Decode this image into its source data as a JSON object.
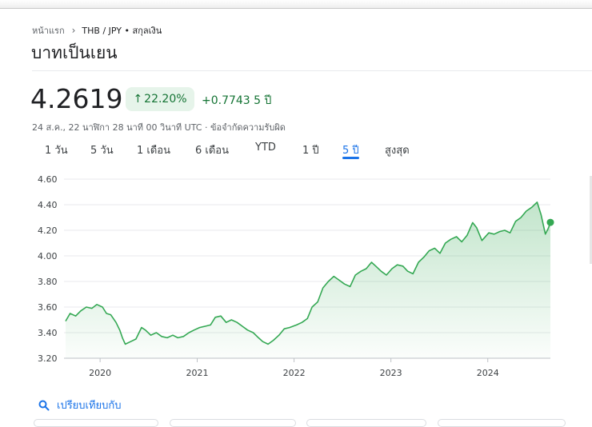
{
  "breadcrumb": {
    "home": "หน้าแรก",
    "current": "THB / JPY • สกุลเงิน"
  },
  "page_title": "บาทเป็นเยน",
  "quote": {
    "price": "4.2619",
    "change_percent": "22.20%",
    "change_abs": "+0.7743 5 ปี",
    "timestamp": "24 ส.ค., 22 นาฬิกา 28 นาที 00 วินาที UTC · ข้อจำกัดความรับผิด"
  },
  "tabs": [
    "1 วัน",
    "5 วัน",
    "1 เดือน",
    "6 เดือน",
    "YTD",
    "1 ปี",
    "5 ปี",
    "สูงสุด"
  ],
  "active_tab": "5 ปี",
  "compare": {
    "label": "เปรียบเทียบกับ"
  },
  "colors": {
    "positive": "#137333",
    "pill_bg": "#e6f4ea",
    "accent": "#1a73e8",
    "line": "#34a853"
  },
  "icons": {
    "change": "arrow-up-icon",
    "compare": "search-icon",
    "breadcrumb_sep": "chevron-right-icon"
  },
  "chart_data": {
    "type": "area",
    "xlabel": "",
    "ylabel": "",
    "ylim": [
      3.2,
      4.6
    ],
    "xlim": [
      "2019-08-24",
      "2024-08-24"
    ],
    "yticks": [
      "4.60",
      "4.40",
      "4.20",
      "4.00",
      "3.80",
      "3.60",
      "3.40",
      "3.20"
    ],
    "xticks": [
      {
        "label": "2020",
        "date": "2020-01-01"
      },
      {
        "label": "2021",
        "date": "2021-01-01"
      },
      {
        "label": "2022",
        "date": "2022-01-01"
      },
      {
        "label": "2023",
        "date": "2023-01-01"
      },
      {
        "label": "2024",
        "date": "2024-01-01"
      }
    ],
    "grid": true,
    "series": [
      {
        "points": [
          [
            "2019-08-24",
            3.49
          ],
          [
            "2019-09-10",
            3.55
          ],
          [
            "2019-10-01",
            3.53
          ],
          [
            "2019-10-20",
            3.57
          ],
          [
            "2019-11-10",
            3.6
          ],
          [
            "2019-12-01",
            3.59
          ],
          [
            "2019-12-20",
            3.62
          ],
          [
            "2020-01-10",
            3.6
          ],
          [
            "2020-01-25",
            3.55
          ],
          [
            "2020-02-10",
            3.54
          ],
          [
            "2020-03-01",
            3.48
          ],
          [
            "2020-03-15",
            3.42
          ],
          [
            "2020-03-25",
            3.36
          ],
          [
            "2020-04-05",
            3.31
          ],
          [
            "2020-04-25",
            3.33
          ],
          [
            "2020-05-15",
            3.35
          ],
          [
            "2020-06-05",
            3.44
          ],
          [
            "2020-06-20",
            3.42
          ],
          [
            "2020-07-10",
            3.38
          ],
          [
            "2020-07-31",
            3.4
          ],
          [
            "2020-08-20",
            3.37
          ],
          [
            "2020-09-10",
            3.36
          ],
          [
            "2020-10-01",
            3.38
          ],
          [
            "2020-10-20",
            3.36
          ],
          [
            "2020-11-10",
            3.37
          ],
          [
            "2020-12-01",
            3.4
          ],
          [
            "2020-12-20",
            3.42
          ],
          [
            "2021-01-10",
            3.44
          ],
          [
            "2021-01-31",
            3.45
          ],
          [
            "2021-02-20",
            3.46
          ],
          [
            "2021-03-10",
            3.52
          ],
          [
            "2021-03-31",
            3.53
          ],
          [
            "2021-04-20",
            3.48
          ],
          [
            "2021-05-10",
            3.5
          ],
          [
            "2021-05-31",
            3.48
          ],
          [
            "2021-06-20",
            3.45
          ],
          [
            "2021-07-10",
            3.42
          ],
          [
            "2021-07-31",
            3.4
          ],
          [
            "2021-08-20",
            3.36
          ],
          [
            "2021-09-05",
            3.33
          ],
          [
            "2021-09-25",
            3.31
          ],
          [
            "2021-10-15",
            3.34
          ],
          [
            "2021-11-05",
            3.38
          ],
          [
            "2021-11-25",
            3.43
          ],
          [
            "2021-12-15",
            3.44
          ],
          [
            "2022-01-10",
            3.46
          ],
          [
            "2022-01-31",
            3.48
          ],
          [
            "2022-02-20",
            3.51
          ],
          [
            "2022-03-10",
            3.6
          ],
          [
            "2022-03-31",
            3.64
          ],
          [
            "2022-04-20",
            3.75
          ],
          [
            "2022-05-10",
            3.8
          ],
          [
            "2022-05-31",
            3.84
          ],
          [
            "2022-06-20",
            3.81
          ],
          [
            "2022-07-10",
            3.78
          ],
          [
            "2022-07-31",
            3.76
          ],
          [
            "2022-08-20",
            3.85
          ],
          [
            "2022-09-10",
            3.88
          ],
          [
            "2022-09-30",
            3.9
          ],
          [
            "2022-10-20",
            3.95
          ],
          [
            "2022-11-05",
            3.92
          ],
          [
            "2022-11-25",
            3.88
          ],
          [
            "2022-12-15",
            3.85
          ],
          [
            "2023-01-05",
            3.9
          ],
          [
            "2023-01-25",
            3.93
          ],
          [
            "2023-02-15",
            3.92
          ],
          [
            "2023-03-05",
            3.88
          ],
          [
            "2023-03-25",
            3.86
          ],
          [
            "2023-04-15",
            3.95
          ],
          [
            "2023-05-05",
            3.99
          ],
          [
            "2023-05-25",
            4.04
          ],
          [
            "2023-06-15",
            4.06
          ],
          [
            "2023-07-05",
            4.02
          ],
          [
            "2023-07-25",
            4.1
          ],
          [
            "2023-08-15",
            4.13
          ],
          [
            "2023-09-05",
            4.15
          ],
          [
            "2023-09-25",
            4.11
          ],
          [
            "2023-10-15",
            4.16
          ],
          [
            "2023-11-05",
            4.26
          ],
          [
            "2023-11-20",
            4.22
          ],
          [
            "2023-12-10",
            4.12
          ],
          [
            "2024-01-05",
            4.18
          ],
          [
            "2024-01-25",
            4.17
          ],
          [
            "2024-02-15",
            4.19
          ],
          [
            "2024-03-05",
            4.2
          ],
          [
            "2024-03-25",
            4.18
          ],
          [
            "2024-04-15",
            4.27
          ],
          [
            "2024-05-05",
            4.3
          ],
          [
            "2024-05-25",
            4.35
          ],
          [
            "2024-06-15",
            4.38
          ],
          [
            "2024-07-05",
            4.42
          ],
          [
            "2024-07-20",
            4.32
          ],
          [
            "2024-08-05",
            4.17
          ],
          [
            "2024-08-15",
            4.21
          ],
          [
            "2024-08-24",
            4.26
          ]
        ],
        "last_value": 4.2619
      }
    ]
  }
}
